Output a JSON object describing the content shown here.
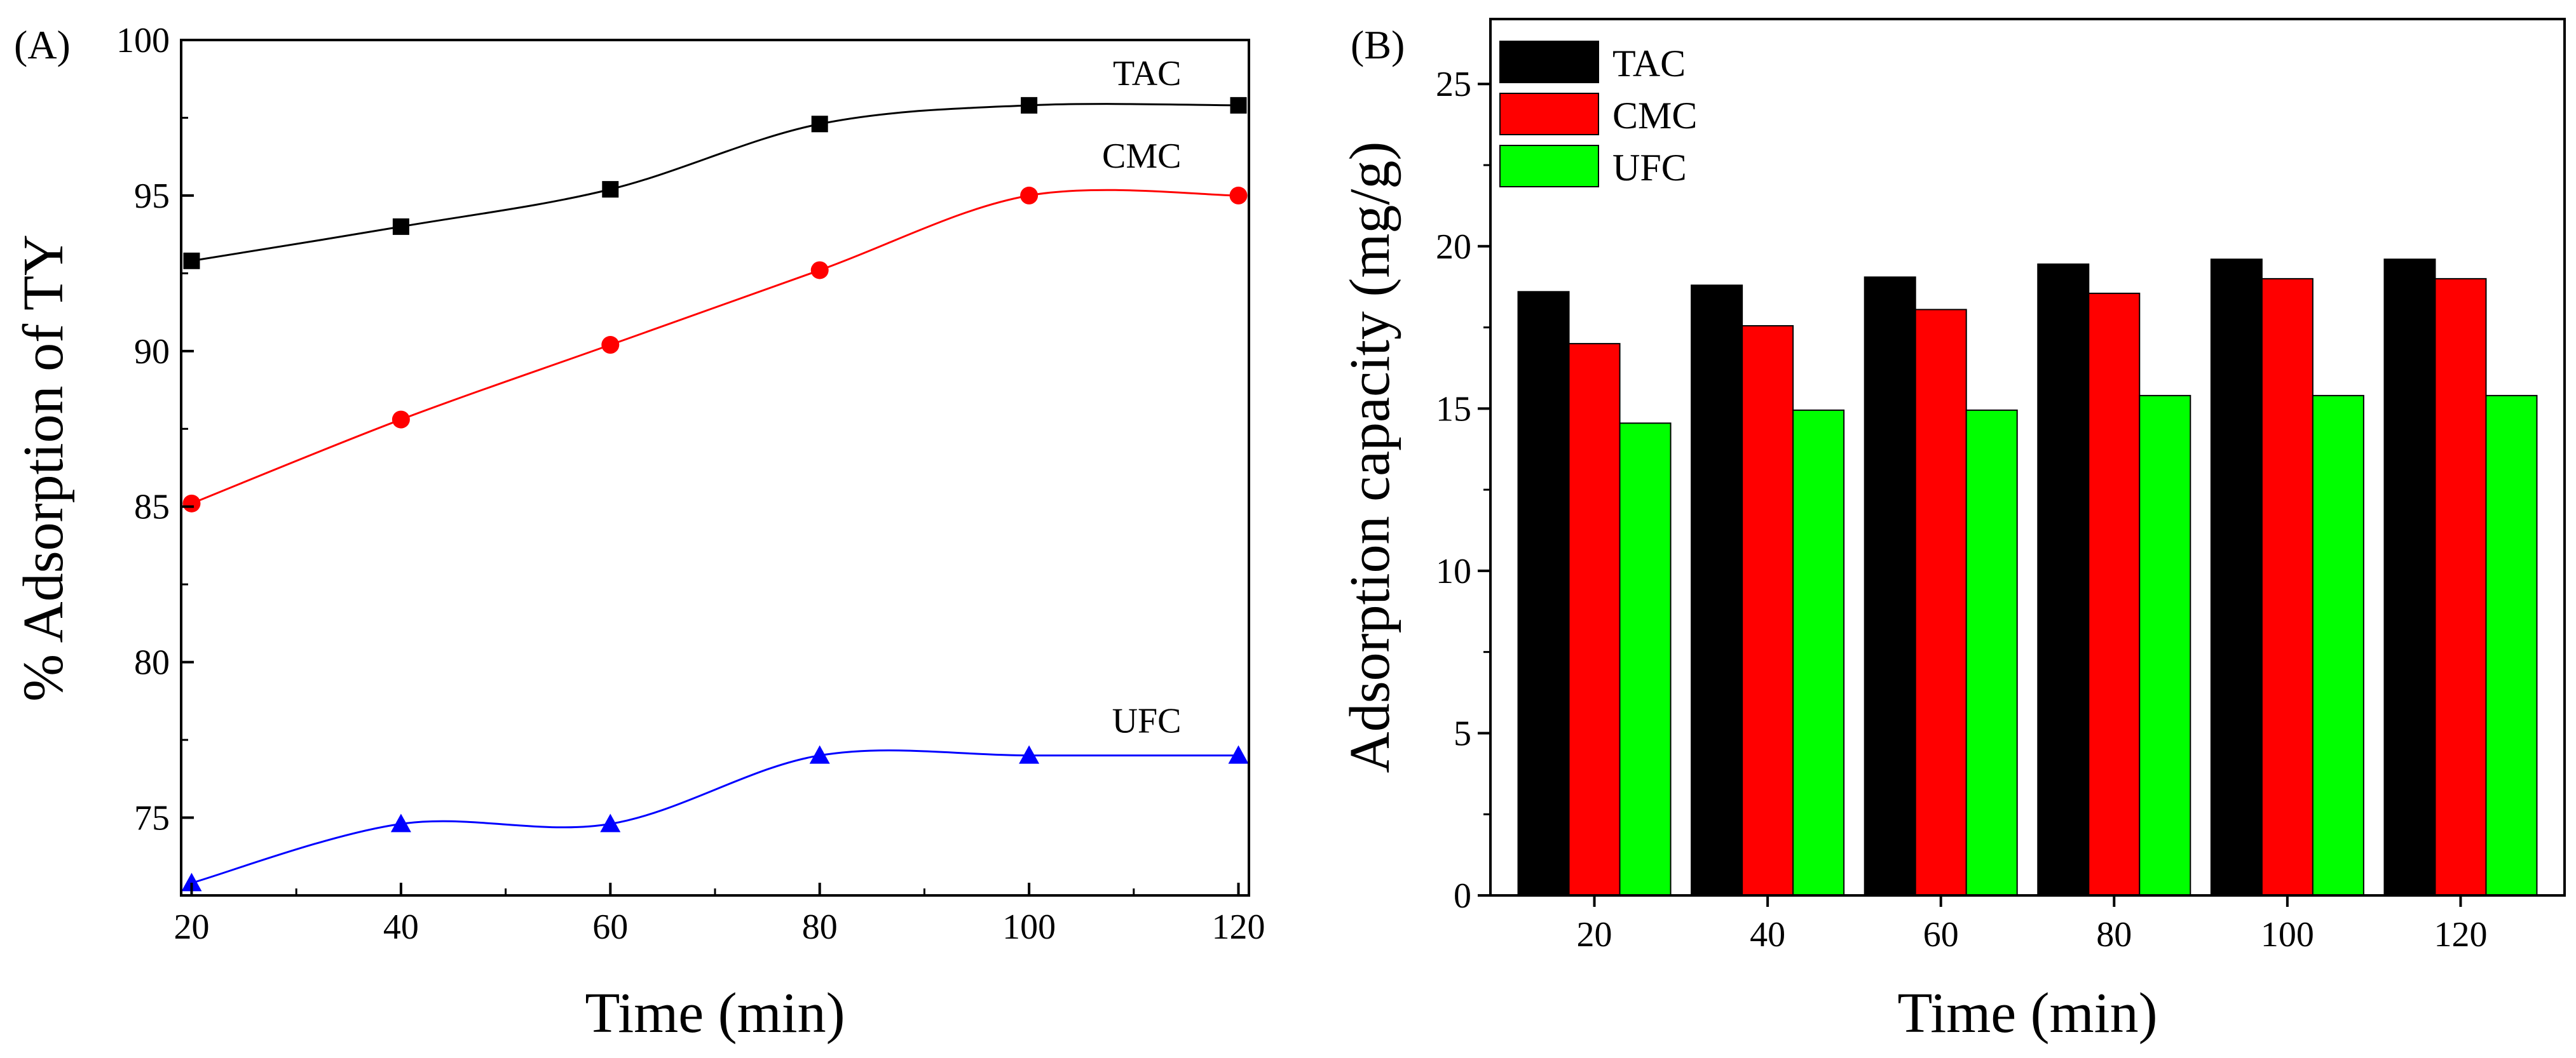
{
  "chart_data": [
    {
      "type": "line",
      "panel_label": "(A)",
      "title": "",
      "xlabel": "Time (min)",
      "ylabel": "% Adsorption of TY",
      "x": [
        20,
        40,
        60,
        80,
        100,
        120
      ],
      "xlim": [
        19,
        121
      ],
      "ylim": [
        72.5,
        100
      ],
      "xticks": [
        20,
        40,
        60,
        80,
        100,
        120
      ],
      "yticks": [
        75,
        80,
        85,
        90,
        95,
        100
      ],
      "grid": false,
      "legend": "inline labels at right end of each line",
      "series": [
        {
          "name": "TAC",
          "color": "#000000",
          "marker": "square",
          "values": [
            92.9,
            94.0,
            95.2,
            97.3,
            97.9,
            97.9
          ]
        },
        {
          "name": "CMC",
          "color": "#ff0000",
          "marker": "circle",
          "values": [
            85.1,
            87.8,
            90.2,
            92.6,
            95.0,
            95.0
          ]
        },
        {
          "name": "UFC",
          "color": "#0000ff",
          "marker": "triangle",
          "values": [
            72.9,
            74.8,
            74.8,
            77.0,
            77.0,
            77.0
          ]
        }
      ]
    },
    {
      "type": "bar",
      "panel_label": "(B)",
      "title": "",
      "xlabel": "Time (min)",
      "ylabel": "Adsorption capacity (mg/g)",
      "categories": [
        "20",
        "40",
        "60",
        "80",
        "100",
        "120"
      ],
      "ylim": [
        0,
        27
      ],
      "yticks": [
        0,
        5,
        10,
        15,
        20,
        25
      ],
      "grid": false,
      "legend": "top-left",
      "series": [
        {
          "name": "TAC",
          "color": "#000000",
          "values": [
            18.6,
            18.8,
            19.05,
            19.45,
            19.6,
            19.6
          ]
        },
        {
          "name": "CMC",
          "color": "#ff0000",
          "values": [
            17.0,
            17.55,
            18.05,
            18.55,
            19.0,
            19.0
          ]
        },
        {
          "name": "UFC",
          "color": "#00ff00",
          "values": [
            14.55,
            14.95,
            14.95,
            15.4,
            15.4,
            15.4
          ]
        }
      ]
    }
  ]
}
